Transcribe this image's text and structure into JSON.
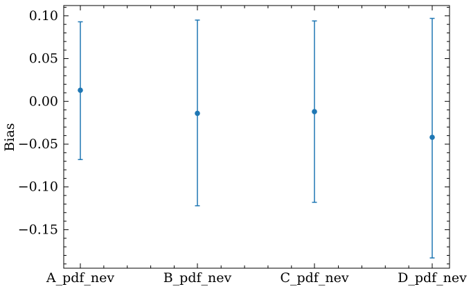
{
  "chart_data": {
    "type": "errorbar",
    "ylabel": "Bias",
    "xlabel": "",
    "categories": [
      "A_pdf_nev",
      "B_pdf_nev",
      "C_pdf_nev",
      "D_pdf_nev"
    ],
    "values": [
      0.013,
      -0.014,
      -0.012,
      -0.042
    ],
    "error_low": [
      -0.068,
      -0.122,
      -0.118,
      -0.183
    ],
    "error_high": [
      0.093,
      0.095,
      0.094,
      0.097
    ],
    "ylim": [
      -0.195,
      0.112
    ],
    "yticks": [
      0.1,
      0.05,
      0.0,
      -0.05,
      -0.1,
      -0.15
    ],
    "ytick_labels": [
      "0.10",
      "0.05",
      "0.00",
      "−0.05",
      "−0.10",
      "−0.15"
    ],
    "color": "#1f77b4",
    "grid": false,
    "legend": null
  }
}
